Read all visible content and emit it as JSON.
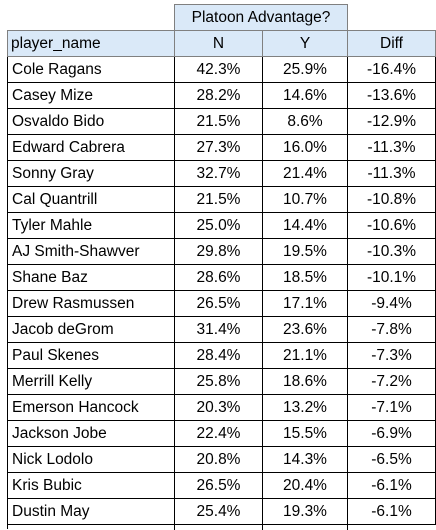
{
  "table": {
    "group_header": "Platoon Advantage?",
    "columns": [
      "player_name",
      "N",
      "Y",
      "Diff"
    ],
    "rows": [
      [
        "Cole Ragans",
        "42.3%",
        "25.9%",
        "-16.4%"
      ],
      [
        "Casey Mize",
        "28.2%",
        "14.6%",
        "-13.6%"
      ],
      [
        "Osvaldo Bido",
        "21.5%",
        "8.6%",
        "-12.9%"
      ],
      [
        "Edward Cabrera",
        "27.3%",
        "16.0%",
        "-11.3%"
      ],
      [
        "Sonny Gray",
        "32.7%",
        "21.4%",
        "-11.3%"
      ],
      [
        "Cal Quantrill",
        "21.5%",
        "10.7%",
        "-10.8%"
      ],
      [
        "Tyler Mahle",
        "25.0%",
        "14.4%",
        "-10.6%"
      ],
      [
        "AJ Smith-Shawver",
        "29.8%",
        "19.5%",
        "-10.3%"
      ],
      [
        "Shane Baz",
        "28.6%",
        "18.5%",
        "-10.1%"
      ],
      [
        "Drew Rasmussen",
        "26.5%",
        "17.1%",
        "-9.4%"
      ],
      [
        "Jacob deGrom",
        "31.4%",
        "23.6%",
        "-7.8%"
      ],
      [
        "Paul Skenes",
        "28.4%",
        "21.1%",
        "-7.3%"
      ],
      [
        "Merrill Kelly",
        "25.8%",
        "18.6%",
        "-7.2%"
      ],
      [
        "Emerson Hancock",
        "20.3%",
        "13.2%",
        "-7.1%"
      ],
      [
        "Jackson Jobe",
        "22.4%",
        "15.5%",
        "-6.9%"
      ],
      [
        "Nick Lodolo",
        "20.8%",
        "14.3%",
        "-6.5%"
      ],
      [
        "Kris Bubic",
        "26.5%",
        "20.4%",
        "-6.1%"
      ],
      [
        "Dustin May",
        "25.4%",
        "19.3%",
        "-6.1%"
      ]
    ]
  },
  "colors": {
    "header_fill": "#dae9f8",
    "grid": "#000000"
  }
}
